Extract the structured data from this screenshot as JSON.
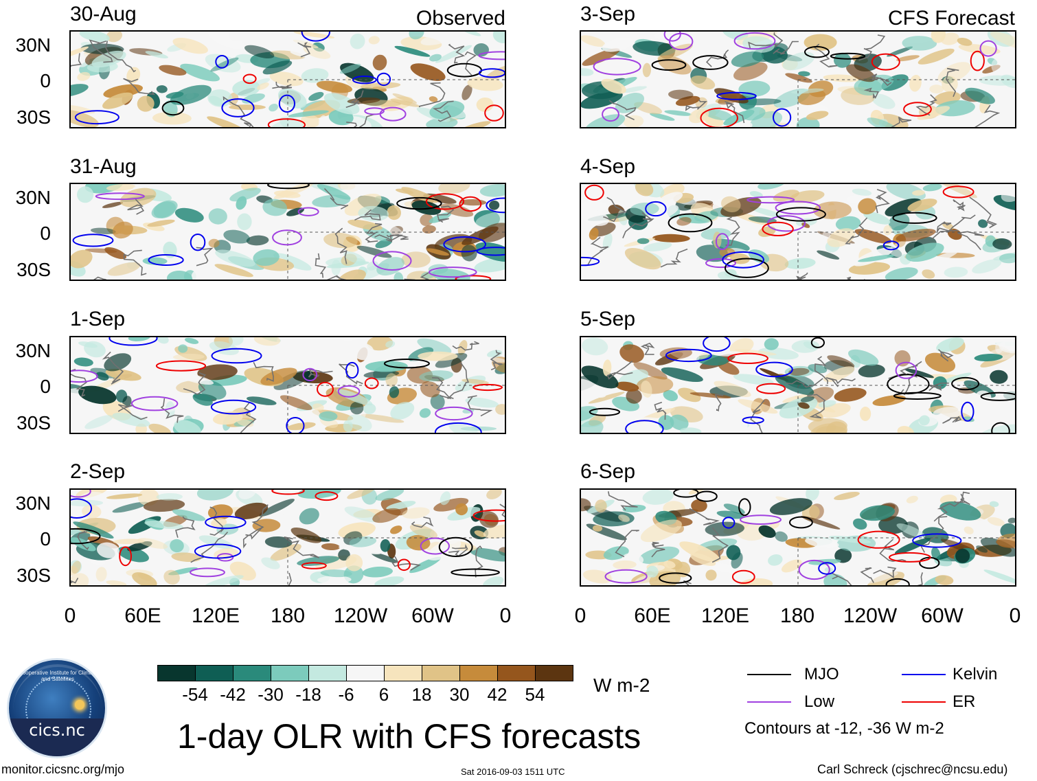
{
  "panels": [
    {
      "date": "30-Aug",
      "tag": "Observed"
    },
    {
      "date": "31-Aug",
      "tag": ""
    },
    {
      "date": "1-Sep",
      "tag": ""
    },
    {
      "date": "2-Sep",
      "tag": ""
    },
    {
      "date": "3-Sep",
      "tag": "CFS Forecast"
    },
    {
      "date": "4-Sep",
      "tag": ""
    },
    {
      "date": "5-Sep",
      "tag": ""
    },
    {
      "date": "6-Sep",
      "tag": ""
    }
  ],
  "lat_labels": [
    "30N",
    "0",
    "30S"
  ],
  "lon_labels": [
    "0",
    "60E",
    "120E",
    "180",
    "120W",
    "60W",
    "0"
  ],
  "colorbar": {
    "colors": [
      "#08362e",
      "#0f5e54",
      "#2a8a7b",
      "#7ccbbc",
      "#c4e9e0",
      "#f6f6f6",
      "#f6e4bd",
      "#e0c387",
      "#c68b3b",
      "#95561d",
      "#5c3510"
    ],
    "labels": [
      "-54",
      "-42",
      "-30",
      "-18",
      "-6",
      "6",
      "18",
      "30",
      "42",
      "54"
    ],
    "units": "W m-2"
  },
  "legend": {
    "items": [
      {
        "name": "MJO",
        "color": "#000000"
      },
      {
        "name": "Kelvin",
        "color": "#0000ee"
      },
      {
        "name": "Low",
        "color": "#a040e0"
      },
      {
        "name": "ER",
        "color": "#ee0000"
      }
    ],
    "note": "Contours at -12, -36 W m-2"
  },
  "title": "1-day OLR with CFS forecasts",
  "logo_text": "cics.nc",
  "logo_ring_text": "Cooperative Institute for Climate and Satellites",
  "footer": {
    "url": "monitor.cicsnc.org/mjo",
    "timestamp": "Sat 2016-09-03 1511 UTC",
    "credit": "Carl Schreck (cjschrec@ncsu.edu)"
  }
}
